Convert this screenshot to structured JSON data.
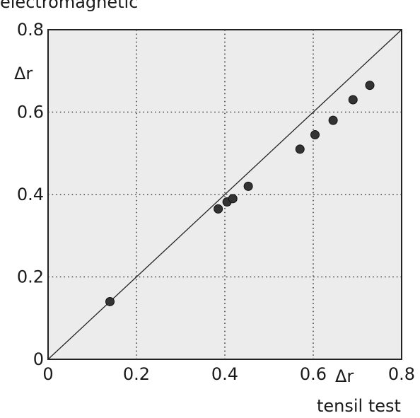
{
  "chart_data": {
    "type": "scatter",
    "y_label_top": "electromagnetic",
    "y_label_inner": "Δr",
    "x_label_inner": "Δr",
    "x_label_bottom": "tensil test",
    "xlim": [
      0,
      0.8
    ],
    "ylim": [
      0,
      0.8
    ],
    "x_ticks": [
      "0",
      "0.2",
      "0.4",
      "0.6",
      "0.8"
    ],
    "y_ticks": [
      "0",
      "0.2",
      "0.4",
      "0.6",
      "0.8"
    ],
    "grid": true,
    "grid_style": "dotted",
    "reference_line": {
      "from": [
        0,
        0
      ],
      "to": [
        0.8,
        0.8
      ]
    },
    "points": [
      {
        "x": 0.14,
        "y": 0.14
      },
      {
        "x": 0.385,
        "y": 0.365
      },
      {
        "x": 0.405,
        "y": 0.382
      },
      {
        "x": 0.418,
        "y": 0.39
      },
      {
        "x": 0.453,
        "y": 0.42
      },
      {
        "x": 0.57,
        "y": 0.51
      },
      {
        "x": 0.604,
        "y": 0.545
      },
      {
        "x": 0.645,
        "y": 0.58
      },
      {
        "x": 0.69,
        "y": 0.63
      },
      {
        "x": 0.728,
        "y": 0.665
      }
    ],
    "colors": {
      "plot_bg": "#ececec",
      "marker": "#333333",
      "axis": "#222222",
      "grid": "#444444"
    }
  }
}
